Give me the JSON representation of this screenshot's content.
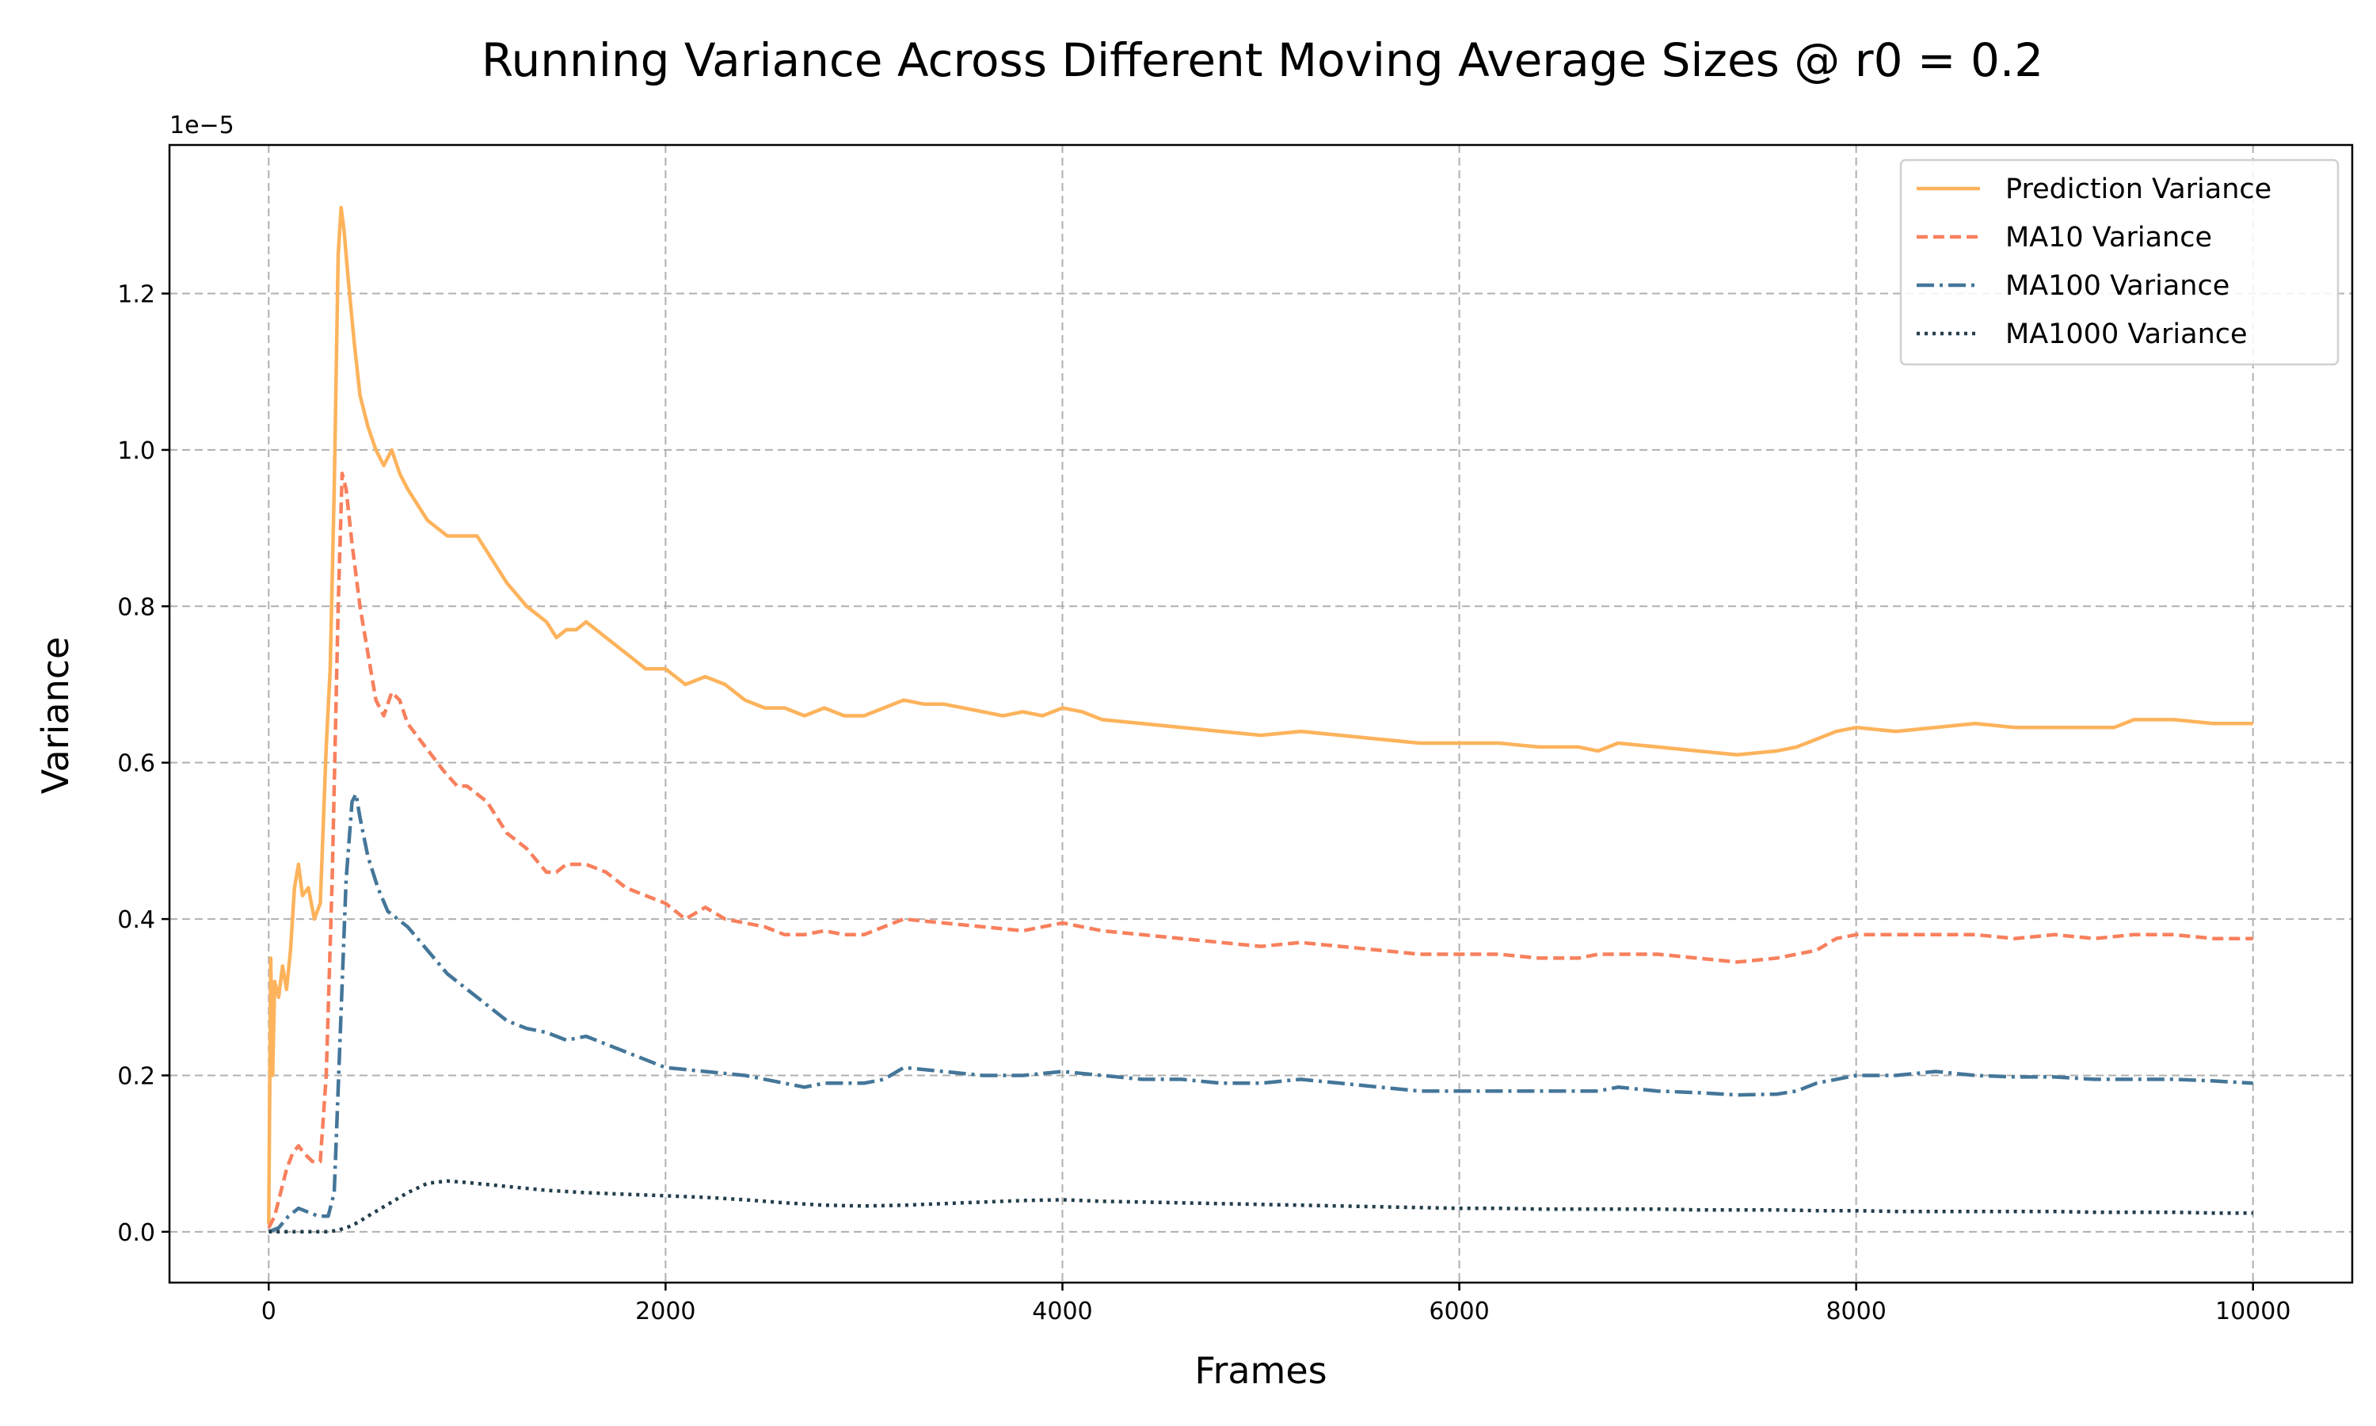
{
  "chart_data": {
    "type": "line",
    "title": "Running Variance Across Different Moving Average Sizes @ r0 = 0.2",
    "xlabel": "Frames",
    "ylabel": "Variance",
    "y_offset_label": "1e−5",
    "xlim": [
      -500,
      10500
    ],
    "ylim": [
      -0.065,
      1.39
    ],
    "x_ticks": [
      0,
      2000,
      4000,
      6000,
      8000,
      10000
    ],
    "y_ticks": [
      0.0,
      0.2,
      0.4,
      0.6,
      0.8,
      1.0,
      1.2
    ],
    "x_tick_labels": [
      "0",
      "2000",
      "4000",
      "6000",
      "8000",
      "10000"
    ],
    "y_tick_labels": [
      "0.0",
      "0.2",
      "0.4",
      "0.6",
      "0.8",
      "1.0",
      "1.2"
    ],
    "grid": true,
    "legend_position": "top-right",
    "series": [
      {
        "name": "Prediction Variance",
        "color": "#fdb35c",
        "dash": "solid",
        "x": [
          0,
          10,
          20,
          30,
          50,
          70,
          90,
          110,
          130,
          150,
          170,
          200,
          230,
          260,
          290,
          310,
          330,
          350,
          365,
          380,
          400,
          430,
          460,
          500,
          540,
          580,
          620,
          660,
          700,
          750,
          800,
          850,
          900,
          950,
          1000,
          1050,
          1100,
          1200,
          1300,
          1400,
          1450,
          1500,
          1550,
          1600,
          1650,
          1700,
          1800,
          1900,
          2000,
          2100,
          2200,
          2300,
          2400,
          2500,
          2600,
          2700,
          2800,
          2900,
          3000,
          3100,
          3200,
          3300,
          3400,
          3500,
          3600,
          3700,
          3800,
          3900,
          4000,
          4100,
          4200,
          4400,
          4600,
          4800,
          5000,
          5200,
          5400,
          5600,
          5800,
          6000,
          6200,
          6400,
          6600,
          6700,
          6800,
          7000,
          7200,
          7400,
          7600,
          7700,
          7800,
          7900,
          8000,
          8200,
          8400,
          8600,
          8800,
          9000,
          9200,
          9300,
          9400,
          9600,
          9800,
          10000
        ],
        "y": [
          0.01,
          0.35,
          0.2,
          0.32,
          0.3,
          0.34,
          0.31,
          0.36,
          0.44,
          0.47,
          0.43,
          0.44,
          0.4,
          0.42,
          0.62,
          0.72,
          0.95,
          1.25,
          1.31,
          1.28,
          1.22,
          1.14,
          1.07,
          1.03,
          1.0,
          0.98,
          1.0,
          0.97,
          0.95,
          0.93,
          0.91,
          0.9,
          0.89,
          0.89,
          0.89,
          0.89,
          0.87,
          0.83,
          0.8,
          0.78,
          0.76,
          0.77,
          0.77,
          0.78,
          0.77,
          0.76,
          0.74,
          0.72,
          0.72,
          0.7,
          0.71,
          0.7,
          0.68,
          0.67,
          0.67,
          0.66,
          0.67,
          0.66,
          0.66,
          0.67,
          0.68,
          0.675,
          0.675,
          0.67,
          0.665,
          0.66,
          0.665,
          0.66,
          0.67,
          0.665,
          0.655,
          0.65,
          0.645,
          0.64,
          0.635,
          0.64,
          0.635,
          0.63,
          0.625,
          0.625,
          0.625,
          0.62,
          0.62,
          0.615,
          0.625,
          0.62,
          0.615,
          0.61,
          0.615,
          0.62,
          0.63,
          0.64,
          0.645,
          0.64,
          0.645,
          0.65,
          0.645,
          0.645,
          0.645,
          0.645,
          0.655,
          0.655,
          0.65,
          0.65
        ]
      },
      {
        "name": "MA10 Variance",
        "color": "#f8805d",
        "dash": "dashed",
        "x": [
          0,
          30,
          60,
          90,
          120,
          150,
          180,
          220,
          260,
          290,
          320,
          350,
          370,
          390,
          420,
          460,
          500,
          540,
          580,
          620,
          660,
          700,
          760,
          820,
          880,
          950,
          1000,
          1050,
          1100,
          1200,
          1300,
          1400,
          1450,
          1500,
          1600,
          1700,
          1800,
          1900,
          2000,
          2100,
          2200,
          2300,
          2400,
          2500,
          2600,
          2700,
          2800,
          2900,
          3000,
          3100,
          3200,
          3400,
          3600,
          3800,
          4000,
          4200,
          4400,
          4600,
          4800,
          5000,
          5200,
          5400,
          5600,
          5800,
          6000,
          6200,
          6400,
          6600,
          6700,
          6800,
          7000,
          7200,
          7400,
          7600,
          7700,
          7800,
          7900,
          8000,
          8200,
          8400,
          8600,
          8800,
          9000,
          9200,
          9400,
          9600,
          9800,
          10000
        ],
        "y": [
          0.005,
          0.02,
          0.05,
          0.08,
          0.1,
          0.11,
          0.1,
          0.09,
          0.09,
          0.2,
          0.45,
          0.8,
          0.97,
          0.95,
          0.88,
          0.8,
          0.74,
          0.68,
          0.66,
          0.69,
          0.68,
          0.65,
          0.63,
          0.61,
          0.59,
          0.57,
          0.57,
          0.56,
          0.55,
          0.51,
          0.49,
          0.46,
          0.46,
          0.47,
          0.47,
          0.46,
          0.44,
          0.43,
          0.42,
          0.4,
          0.415,
          0.4,
          0.395,
          0.39,
          0.38,
          0.38,
          0.385,
          0.38,
          0.38,
          0.39,
          0.4,
          0.395,
          0.39,
          0.385,
          0.395,
          0.385,
          0.38,
          0.375,
          0.37,
          0.365,
          0.37,
          0.365,
          0.36,
          0.355,
          0.355,
          0.355,
          0.35,
          0.35,
          0.355,
          0.355,
          0.355,
          0.35,
          0.345,
          0.35,
          0.355,
          0.36,
          0.375,
          0.38,
          0.38,
          0.38,
          0.38,
          0.375,
          0.38,
          0.375,
          0.38,
          0.38,
          0.375,
          0.375
        ]
      },
      {
        "name": "MA100 Variance",
        "color": "#447699",
        "dash": "dashdot",
        "x": [
          0,
          50,
          100,
          150,
          200,
          250,
          300,
          330,
          360,
          390,
          420,
          440,
          460,
          500,
          550,
          600,
          650,
          700,
          800,
          900,
          1000,
          1100,
          1200,
          1300,
          1400,
          1500,
          1600,
          1700,
          1800,
          1900,
          2000,
          2200,
          2400,
          2600,
          2700,
          2800,
          3000,
          3100,
          3200,
          3400,
          3600,
          3800,
          4000,
          4200,
          4400,
          4600,
          4800,
          5000,
          5200,
          5400,
          5600,
          5800,
          6000,
          6200,
          6400,
          6600,
          6700,
          6800,
          7000,
          7200,
          7400,
          7600,
          7700,
          7800,
          7900,
          8000,
          8200,
          8400,
          8600,
          8800,
          9000,
          9200,
          9400,
          9600,
          9800,
          10000
        ],
        "y": [
          0.0,
          0.005,
          0.02,
          0.03,
          0.025,
          0.02,
          0.02,
          0.05,
          0.25,
          0.45,
          0.55,
          0.56,
          0.53,
          0.48,
          0.44,
          0.41,
          0.4,
          0.39,
          0.36,
          0.33,
          0.31,
          0.29,
          0.27,
          0.26,
          0.255,
          0.245,
          0.25,
          0.24,
          0.23,
          0.22,
          0.21,
          0.205,
          0.2,
          0.19,
          0.185,
          0.19,
          0.19,
          0.195,
          0.21,
          0.205,
          0.2,
          0.2,
          0.205,
          0.2,
          0.195,
          0.195,
          0.19,
          0.19,
          0.195,
          0.19,
          0.185,
          0.18,
          0.18,
          0.18,
          0.18,
          0.18,
          0.18,
          0.185,
          0.18,
          0.178,
          0.175,
          0.176,
          0.18,
          0.19,
          0.195,
          0.2,
          0.2,
          0.205,
          0.2,
          0.198,
          0.198,
          0.195,
          0.195,
          0.195,
          0.193,
          0.19
        ]
      },
      {
        "name": "MA1000 Variance",
        "color": "#233e4c",
        "dash": "dotted",
        "x": [
          0,
          100,
          200,
          300,
          350,
          400,
          450,
          500,
          600,
          700,
          800,
          900,
          1000,
          1200,
          1400,
          1600,
          1800,
          2000,
          2200,
          2400,
          2600,
          2800,
          3000,
          3200,
          3400,
          3600,
          3800,
          4000,
          4200,
          4400,
          4600,
          4800,
          5000,
          5200,
          5400,
          5600,
          5800,
          6000,
          6200,
          6400,
          6600,
          6800,
          7000,
          7200,
          7400,
          7600,
          7800,
          8000,
          8200,
          8400,
          8600,
          8800,
          9000,
          9200,
          9400,
          9600,
          9800,
          10000
        ],
        "y": [
          0.0,
          0.0,
          0.0,
          0.0,
          0.002,
          0.006,
          0.012,
          0.02,
          0.035,
          0.05,
          0.062,
          0.065,
          0.063,
          0.058,
          0.053,
          0.05,
          0.048,
          0.046,
          0.044,
          0.041,
          0.037,
          0.034,
          0.033,
          0.034,
          0.036,
          0.038,
          0.04,
          0.041,
          0.039,
          0.038,
          0.037,
          0.036,
          0.035,
          0.034,
          0.033,
          0.032,
          0.031,
          0.03,
          0.03,
          0.029,
          0.029,
          0.029,
          0.029,
          0.028,
          0.028,
          0.028,
          0.027,
          0.027,
          0.026,
          0.026,
          0.026,
          0.026,
          0.026,
          0.025,
          0.025,
          0.025,
          0.024,
          0.024
        ]
      }
    ]
  }
}
